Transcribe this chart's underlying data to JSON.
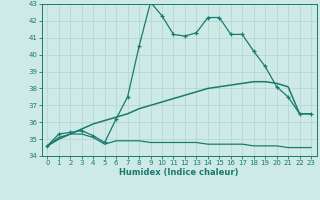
{
  "xlabel": "Humidex (Indice chaleur)",
  "x": [
    0,
    1,
    2,
    3,
    4,
    5,
    6,
    7,
    8,
    9,
    10,
    11,
    12,
    13,
    14,
    15,
    16,
    17,
    18,
    19,
    20,
    21,
    22,
    23
  ],
  "line1": [
    34.6,
    35.3,
    35.4,
    35.5,
    35.2,
    34.8,
    36.2,
    37.5,
    40.5,
    43.1,
    42.3,
    41.2,
    41.1,
    41.3,
    42.2,
    42.2,
    41.2,
    41.2,
    40.2,
    39.3,
    38.1,
    37.5,
    36.5,
    36.5
  ],
  "line2": [
    34.6,
    35.1,
    35.3,
    35.3,
    35.1,
    34.7,
    34.9,
    34.9,
    34.9,
    34.8,
    34.8,
    34.8,
    34.8,
    34.8,
    34.7,
    34.7,
    34.7,
    34.7,
    34.6,
    34.6,
    34.6,
    34.5,
    34.5,
    34.5
  ],
  "line3": [
    34.6,
    35.0,
    35.3,
    35.6,
    35.9,
    36.1,
    36.3,
    36.5,
    36.8,
    37.0,
    37.2,
    37.4,
    37.6,
    37.8,
    38.0,
    38.1,
    38.2,
    38.3,
    38.4,
    38.4,
    38.3,
    38.1,
    36.5,
    36.5
  ],
  "ylim": [
    34,
    43
  ],
  "xlim_min": -0.5,
  "xlim_max": 23.5,
  "yticks": [
    34,
    35,
    36,
    37,
    38,
    39,
    40,
    41,
    42,
    43
  ],
  "xticks": [
    0,
    1,
    2,
    3,
    4,
    5,
    6,
    7,
    8,
    9,
    10,
    11,
    12,
    13,
    14,
    15,
    16,
    17,
    18,
    19,
    20,
    21,
    22,
    23
  ],
  "line_color": "#1a7a6e",
  "bg_color": "#ceeae6",
  "grid_color": "#b0d4ce"
}
